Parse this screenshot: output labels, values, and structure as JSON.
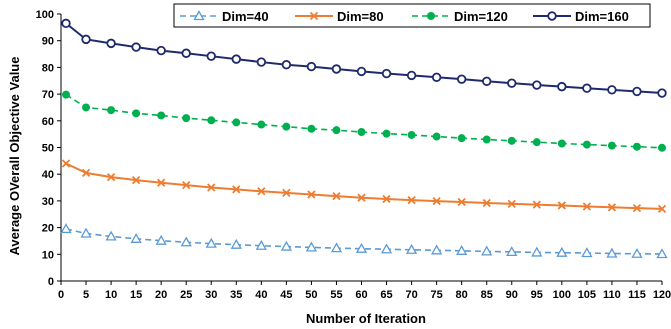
{
  "chart_data": {
    "type": "line",
    "title": "",
    "xlabel": "Number of Iteration",
    "ylabel": "Average OVerall Objective Value",
    "xlim": [
      0,
      120
    ],
    "ylim": [
      0,
      100
    ],
    "x_ticks": [
      "0",
      "5",
      "10",
      "15",
      "20",
      "25",
      "30",
      "35",
      "40",
      "45",
      "50",
      "55",
      "60",
      "65",
      "70",
      "75",
      "80",
      "85",
      "90",
      "95",
      "100",
      "105",
      "110",
      "115",
      "120"
    ],
    "y_ticks": [
      "0",
      "10",
      "20",
      "30",
      "40",
      "50",
      "60",
      "70",
      "80",
      "90",
      "100"
    ],
    "grid": false,
    "legend_position": "top",
    "x": [
      1,
      5,
      10,
      15,
      20,
      25,
      30,
      35,
      40,
      45,
      50,
      55,
      60,
      65,
      70,
      75,
      80,
      85,
      90,
      95,
      100,
      105,
      110,
      115,
      120
    ],
    "series": [
      {
        "name": "Dim=40",
        "color": "#5b9bd5",
        "marker": "triangle",
        "line_style": "dashed",
        "values": [
          19.5,
          17.8,
          16.7,
          15.8,
          15.1,
          14.5,
          14.0,
          13.6,
          13.2,
          12.9,
          12.6,
          12.3,
          12.1,
          11.9,
          11.7,
          11.5,
          11.3,
          11.1,
          10.9,
          10.7,
          10.6,
          10.5,
          10.3,
          10.2,
          10.1
        ]
      },
      {
        "name": "Dim=80",
        "color": "#ed7d31",
        "marker": "x",
        "line_style": "solid",
        "values": [
          44.0,
          40.5,
          38.9,
          37.8,
          36.8,
          35.9,
          35.0,
          34.3,
          33.6,
          33.0,
          32.4,
          31.8,
          31.2,
          30.7,
          30.3,
          29.9,
          29.6,
          29.2,
          28.9,
          28.6,
          28.3,
          27.9,
          27.6,
          27.3,
          27.0
        ]
      },
      {
        "name": "Dim=120",
        "color": "#00b050",
        "marker": "circle",
        "line_style": "dashed",
        "values": [
          69.8,
          65.0,
          64.0,
          62.8,
          62.0,
          61.0,
          60.2,
          59.4,
          58.6,
          57.8,
          57.0,
          56.5,
          55.8,
          55.2,
          54.7,
          54.1,
          53.5,
          53.0,
          52.5,
          52.0,
          51.5,
          51.1,
          50.7,
          50.3,
          49.9
        ]
      },
      {
        "name": "Dim=160",
        "color": "#1f2a6b",
        "marker": "circle-open",
        "line_style": "solid",
        "values": [
          96.5,
          90.5,
          89.0,
          87.6,
          86.3,
          85.3,
          84.2,
          83.1,
          82.0,
          81.0,
          80.3,
          79.4,
          78.5,
          77.7,
          77.0,
          76.3,
          75.6,
          74.8,
          74.1,
          73.4,
          72.8,
          72.2,
          71.6,
          71.0,
          70.4
        ]
      }
    ]
  }
}
